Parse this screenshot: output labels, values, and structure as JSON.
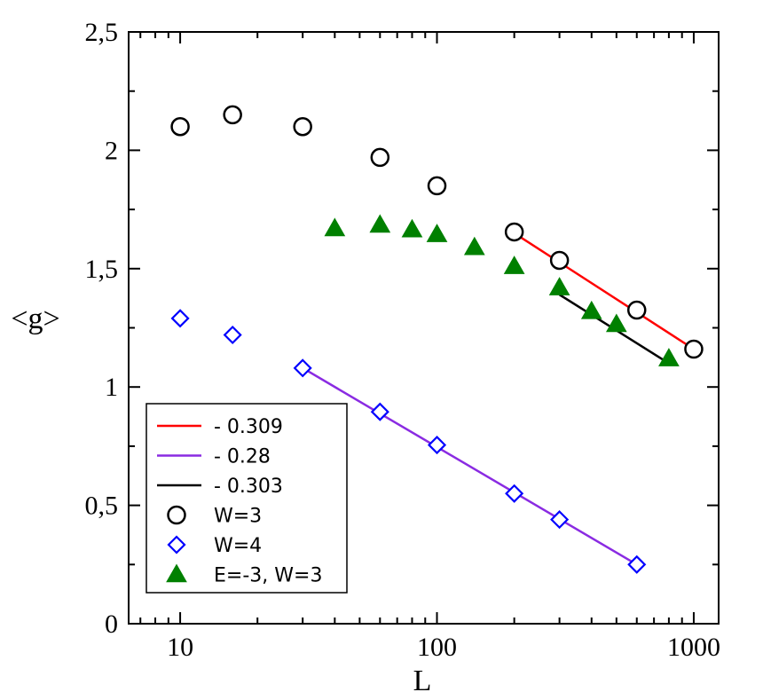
{
  "chart_data": {
    "type": "scatter",
    "xscale": "log",
    "xlabel": "L",
    "ylabel": "<g>",
    "xlim": [
      6.3,
      1250
    ],
    "ylim": [
      0,
      2.5
    ],
    "x_ticks": [
      {
        "value": 10,
        "label": "10"
      },
      {
        "value": 100,
        "label": "100"
      },
      {
        "value": 1000,
        "label": "1000"
      }
    ],
    "y_ticks": [
      {
        "value": 0,
        "label": "0"
      },
      {
        "value": 0.5,
        "label": "0,5"
      },
      {
        "value": 1,
        "label": "1"
      },
      {
        "value": 1.5,
        "label": "1,5"
      },
      {
        "value": 2,
        "label": "2"
      },
      {
        "value": 2.5,
        "label": "2,5"
      }
    ],
    "lines": [
      {
        "name": "- 0.309",
        "color": "#ff0000",
        "x": [
          200,
          1000
        ],
        "y": [
          1.65,
          1.16
        ]
      },
      {
        "name": "- 0.28",
        "color": "#8a2be2",
        "x": [
          30,
          600
        ],
        "y": [
          1.08,
          0.25
        ]
      },
      {
        "name": "- 0.303",
        "color": "#000000",
        "x": [
          300,
          800
        ],
        "y": [
          1.39,
          1.1
        ]
      }
    ],
    "series": [
      {
        "name": "W=3",
        "marker": "circle",
        "color": "#000000",
        "x": [
          10,
          16,
          30,
          60,
          100,
          200,
          300,
          600,
          1000
        ],
        "y": [
          2.1,
          2.15,
          2.1,
          1.97,
          1.85,
          1.655,
          1.535,
          1.325,
          1.16
        ]
      },
      {
        "name": "W=4",
        "marker": "diamond",
        "color": "#0000ff",
        "x": [
          10,
          16,
          30,
          60,
          100,
          200,
          300,
          600
        ],
        "y": [
          1.29,
          1.22,
          1.08,
          0.895,
          0.755,
          0.55,
          0.44,
          0.25
        ]
      },
      {
        "name": "E=-3, W=3",
        "marker": "triangle",
        "color": "#008000",
        "x": [
          40,
          60,
          80,
          100,
          140,
          200,
          300,
          400,
          500,
          800
        ],
        "y": [
          1.67,
          1.685,
          1.665,
          1.645,
          1.59,
          1.51,
          1.42,
          1.32,
          1.265,
          1.12
        ]
      }
    ],
    "legend": {
      "position": "bottom-left",
      "entries": [
        {
          "label": "- 0.309",
          "kind": "line",
          "color": "#ff0000"
        },
        {
          "label": "- 0.28",
          "kind": "line",
          "color": "#8a2be2"
        },
        {
          "label": "- 0.303",
          "kind": "line",
          "color": "#000000"
        },
        {
          "label": "W=3",
          "kind": "circle",
          "color": "#000000"
        },
        {
          "label": "W=4",
          "kind": "diamond",
          "color": "#0000ff"
        },
        {
          "label": "E=-3, W=3",
          "kind": "triangle",
          "color": "#008000"
        }
      ]
    }
  }
}
